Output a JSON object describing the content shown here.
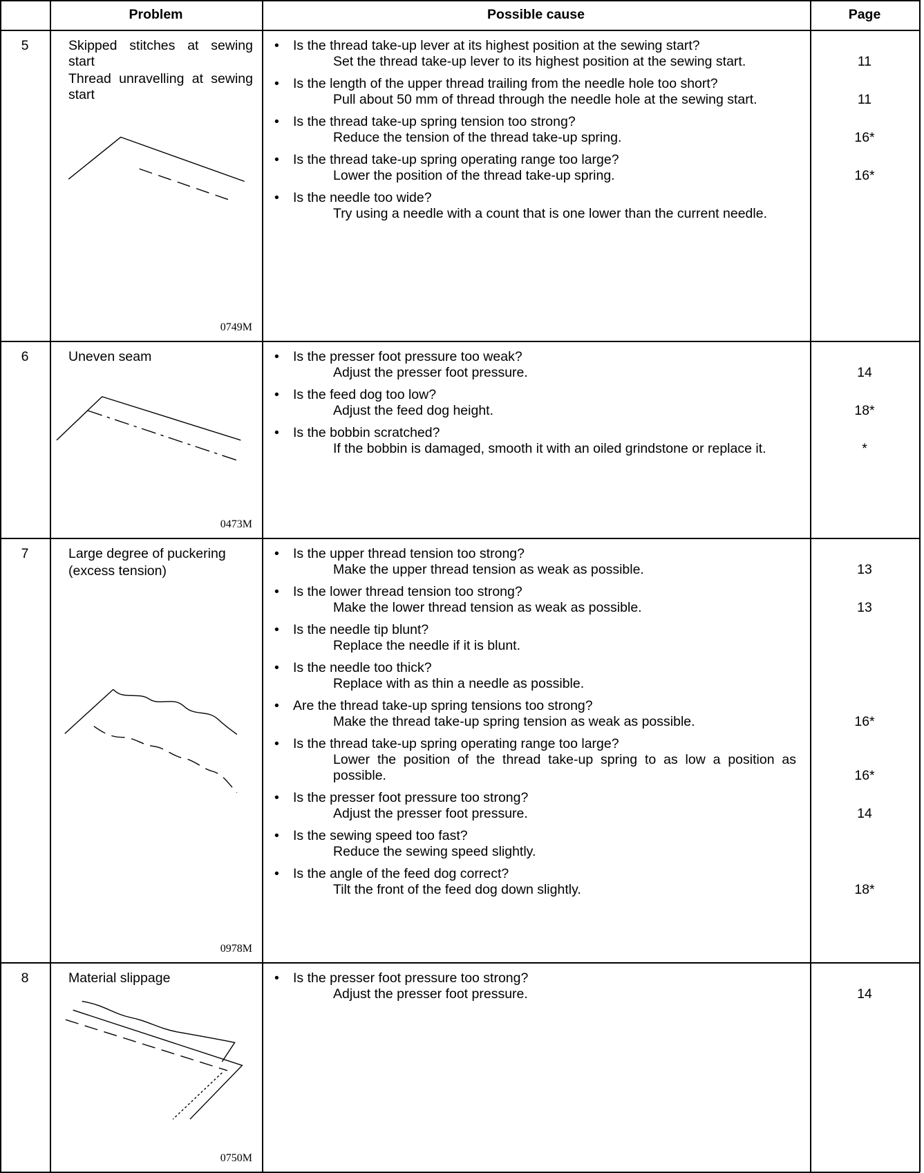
{
  "header": {
    "problem": "Problem",
    "cause": "Possible cause",
    "page": "Page"
  },
  "rows": [
    {
      "number": 5,
      "problem": [
        "Skipped stitches at sewing start",
        "Thread unravelling at sewing start"
      ],
      "figure": "0749M",
      "causes": [
        {
          "question": "Is the thread take-up lever at its highest position at the sewing start?",
          "remedy": "Set the thread take-up lever to its highest position at the sewing start.",
          "page": "11"
        },
        {
          "question": "Is the length of the upper thread trailing from the needle hole too short?",
          "remedy": "Pull about 50 mm of thread through the needle hole at the sewing start.",
          "page": "11"
        },
        {
          "question": "Is the thread take-up spring tension too strong?",
          "remedy": "Reduce the tension of the thread take-up spring.",
          "page": "16*"
        },
        {
          "question": "Is the thread take-up spring operating range too large?",
          "remedy": "Lower the position of the thread take-up spring.",
          "page": "16*"
        },
        {
          "question": "Is the needle too wide?",
          "remedy": "Try using a needle with a count that is one lower than the current needle."
        }
      ]
    },
    {
      "number": 6,
      "problem": [
        "Uneven seam"
      ],
      "figure": "0473M",
      "causes": [
        {
          "question": "Is the presser foot pressure too weak?",
          "remedy": "Adjust the presser foot pressure.",
          "page": "14"
        },
        {
          "question": "Is the feed dog too low?",
          "remedy": "Adjust the feed dog height.",
          "page": "18*"
        },
        {
          "question": "Is the bobbin scratched?",
          "remedy": "If the bobbin is damaged, smooth it with an oiled grindstone or replace it.",
          "page": "*"
        }
      ]
    },
    {
      "number": 7,
      "problem": [
        "Large degree of puckering",
        "(excess tension)"
      ],
      "figure": "0978M",
      "causes": [
        {
          "question": "Is the upper thread tension too strong?",
          "remedy": "Make the upper thread tension as weak as possible.",
          "page": "13"
        },
        {
          "question": "Is the lower thread tension too strong?",
          "remedy": "Make the lower thread tension as weak as possible.",
          "page": "13"
        },
        {
          "question": "Is the needle tip blunt?",
          "remedy": "Replace the needle if it is blunt."
        },
        {
          "question": "Is the needle too thick?",
          "remedy": "Replace with as thin a needle as possible."
        },
        {
          "question": "Are the thread take-up spring tensions too strong?",
          "remedy": "Make the thread take-up spring tension as weak as possible.",
          "page": "16*"
        },
        {
          "question": "Is the thread take-up spring operating range too large?",
          "remedy": "Lower the position of the thread take-up spring to as low a position as possible.",
          "page": "16*"
        },
        {
          "question": "Is the presser foot pressure too strong?",
          "remedy": "Adjust the presser foot pressure.",
          "page": "14"
        },
        {
          "question": "Is the sewing speed too fast?",
          "remedy": "Reduce the sewing speed slightly."
        },
        {
          "question": "Is the angle of the feed dog correct?",
          "remedy": "Tilt the front of the feed dog down slightly.",
          "page": "18*"
        }
      ]
    },
    {
      "number": 8,
      "problem": [
        "Material slippage"
      ],
      "figure": "0750M",
      "causes": [
        {
          "question": "Is the presser foot pressure too strong?",
          "remedy": "Adjust the presser foot pressure.",
          "page": "14"
        }
      ]
    }
  ]
}
